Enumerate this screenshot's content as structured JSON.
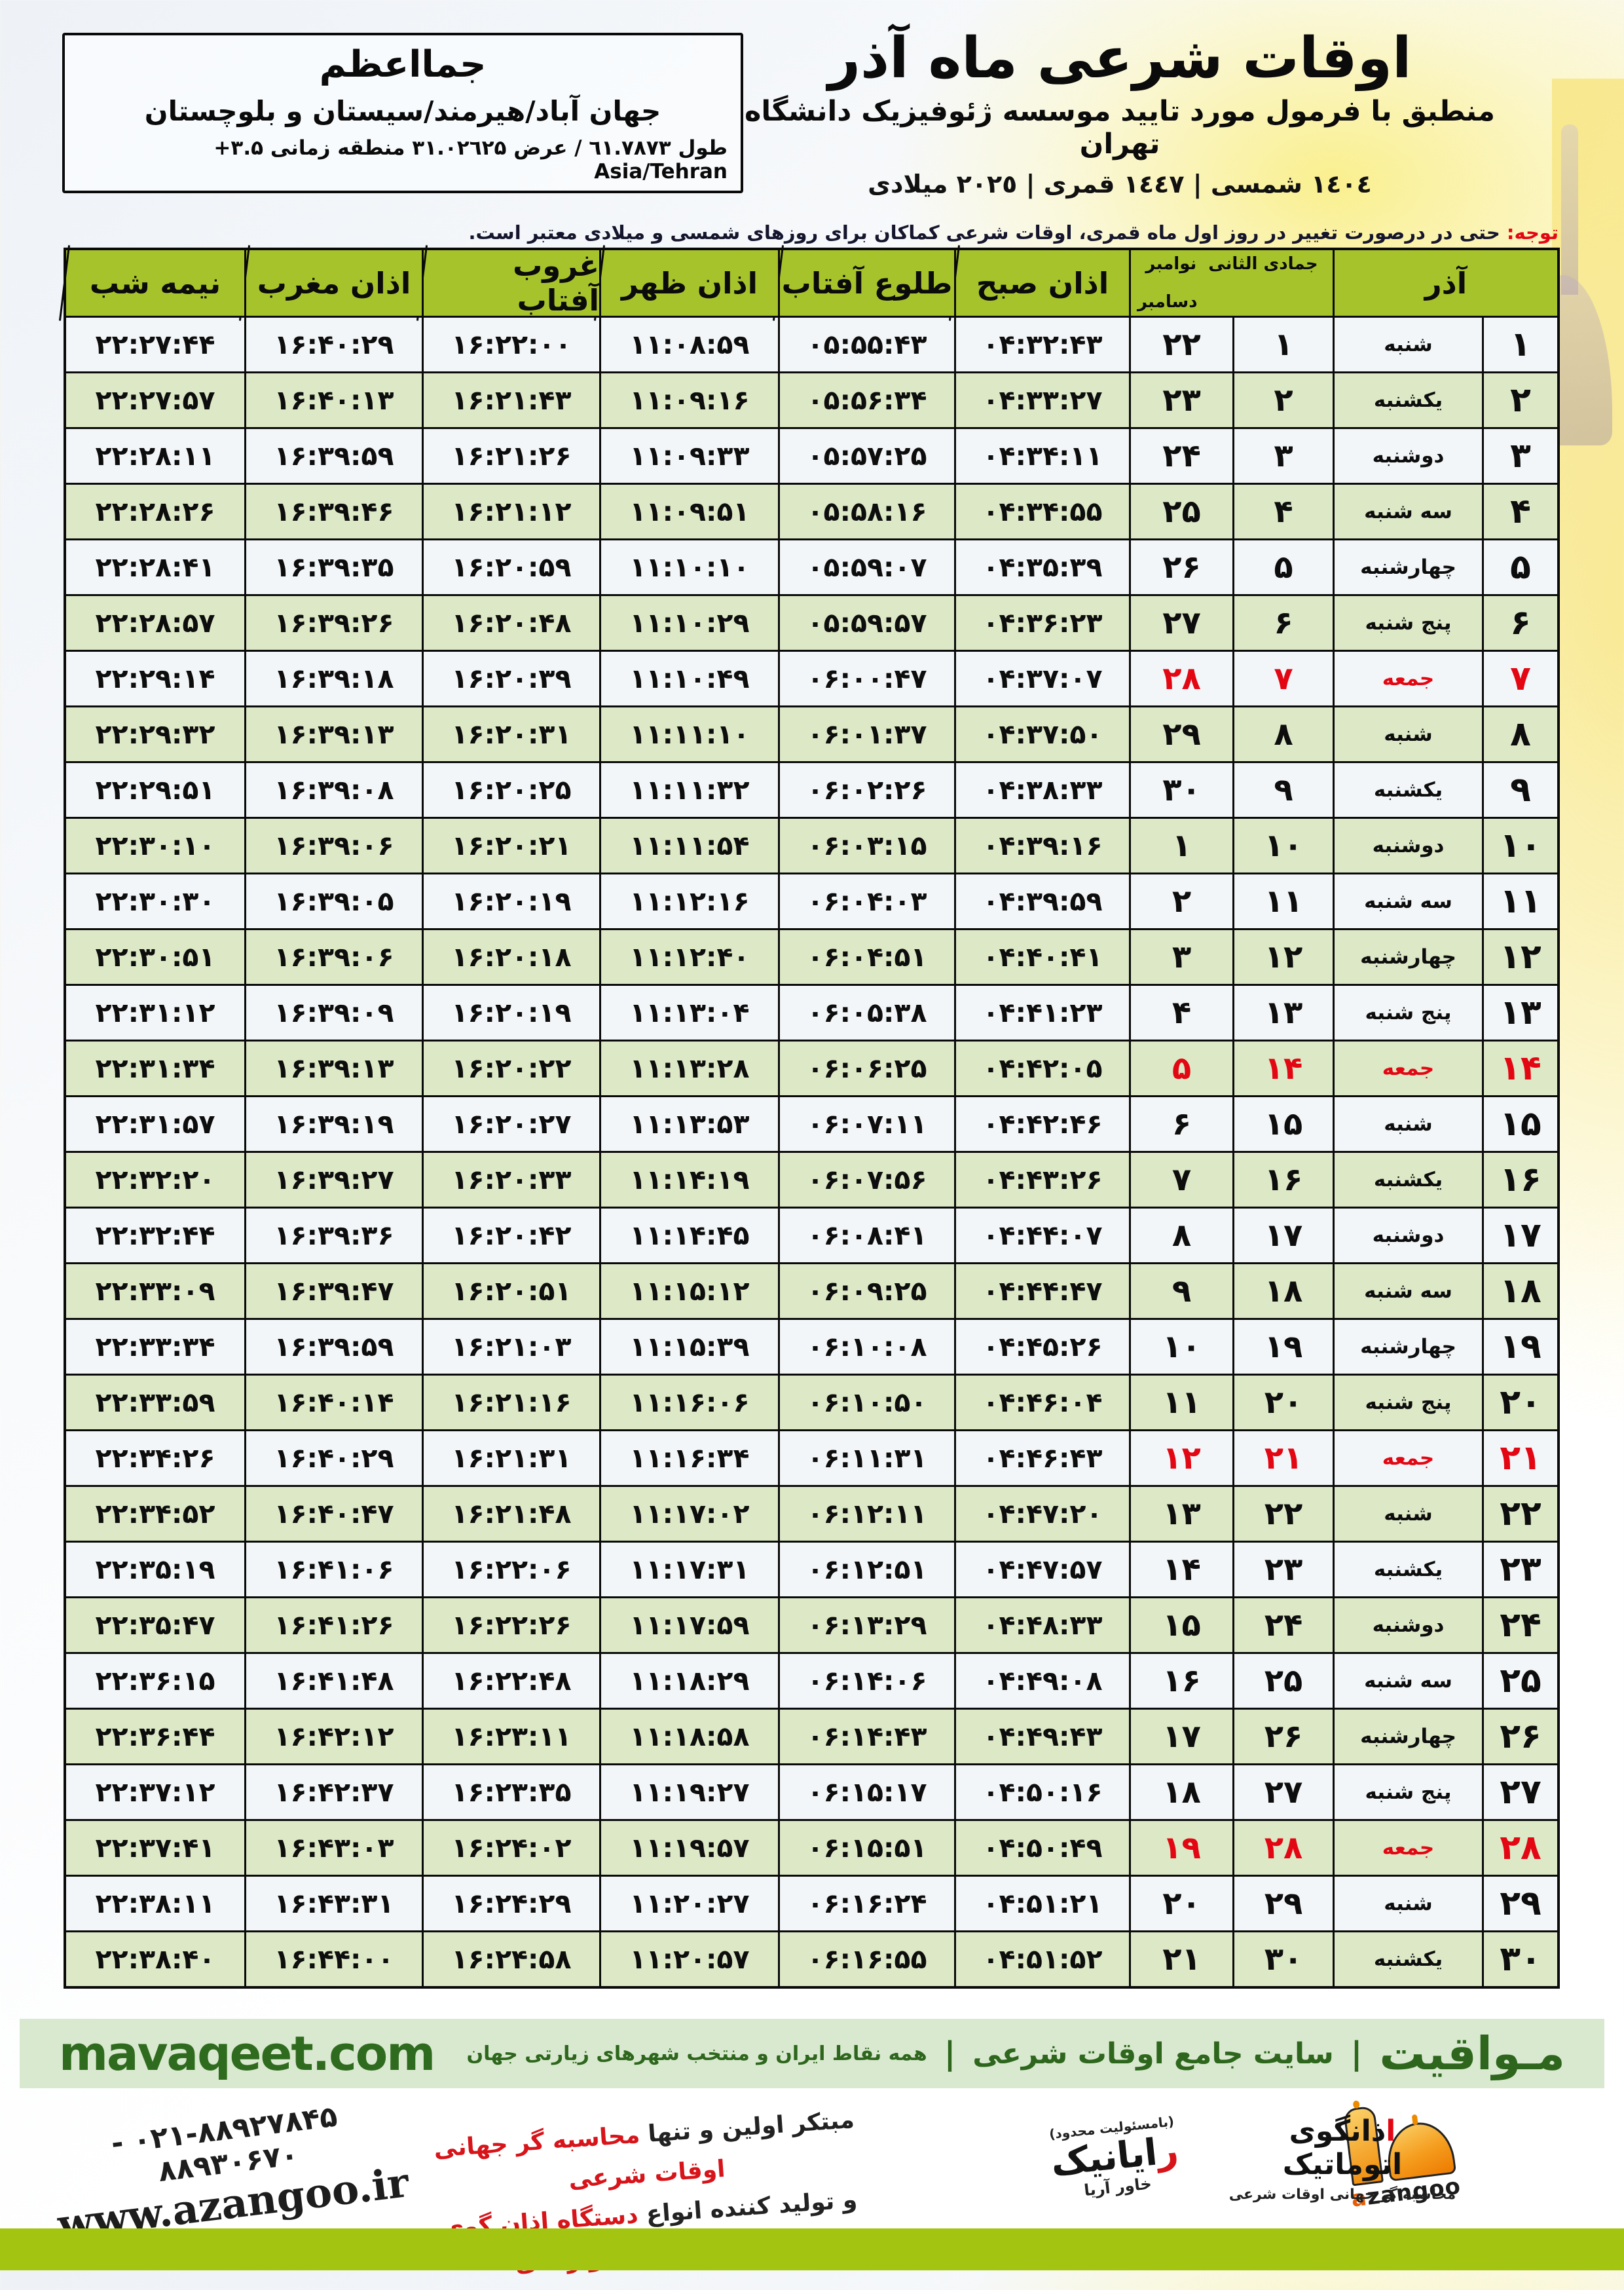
{
  "colors": {
    "header_green": "#a7c32c",
    "row_green": "#dce8c6",
    "row_white": "#f3f6f8",
    "friday_red": "#e30613",
    "banner_bg": "#d9e9cf",
    "banner_text": "#2d661c",
    "bottom_bar": "#a3c511",
    "logo_orange": "#f08a08"
  },
  "location": {
    "title": "جمااعظم",
    "region": "جهان آباد/هیرمند/سیستان و بلوچستان",
    "coords": "طول ٦١.۷۸۷۳ / عرض ۳۱.۰۲٦۲۵ منطقه زمانی ۳.۵+ Asia/Tehran"
  },
  "header": {
    "title": "اوقات شرعی ماه آذر",
    "subtitle": "منطبق با فرمول مورد تایید موسسه ژئوفیزیک دانشگاه تهران",
    "years": "١٤٠٤ شمسی | ١٤٤٧ قمری | ٢٠٢٥ میلادی"
  },
  "notice": {
    "label": "توجه:",
    "text": " حتی در درصورت تغییر در روز اول ماه قمری، اوقات شرعی کماکان برای روزهای شمسی و میلادی معتبر است."
  },
  "table": {
    "columns": {
      "azar": "آذر",
      "hijri_month": "جمادی الثانی",
      "greg_month_top": "نوامبر",
      "greg_month_bottom": "دسامبر",
      "fajr": "اذان صبح",
      "sunrise": "طلوع آفتاب",
      "dhuhr": "اذان ظهر",
      "sunset": "غروب آفتاب",
      "maghrib": "اذان مغرب",
      "midnight": "نیمه شب"
    },
    "rows": [
      {
        "azar": "۱",
        "weekday": "شنبه",
        "jumada": "۱",
        "greg": "۲۲",
        "fajr": "۰۴:۳۲:۴۳",
        "sunrise": "۰۵:۵۵:۴۳",
        "dhuhr": "۱۱:۰۸:۵۹",
        "sunset": "۱۶:۲۲:۰۰",
        "maghrib": "۱۶:۴۰:۲۹",
        "midnight": "۲۲:۲۷:۴۴",
        "friday": false
      },
      {
        "azar": "۲",
        "weekday": "یکشنبه",
        "jumada": "۲",
        "greg": "۲۳",
        "fajr": "۰۴:۳۳:۲۷",
        "sunrise": "۰۵:۵۶:۳۴",
        "dhuhr": "۱۱:۰۹:۱۶",
        "sunset": "۱۶:۲۱:۴۳",
        "maghrib": "۱۶:۴۰:۱۳",
        "midnight": "۲۲:۲۷:۵۷",
        "friday": false
      },
      {
        "azar": "۳",
        "weekday": "دوشنبه",
        "jumada": "۳",
        "greg": "۲۴",
        "fajr": "۰۴:۳۴:۱۱",
        "sunrise": "۰۵:۵۷:۲۵",
        "dhuhr": "۱۱:۰۹:۳۳",
        "sunset": "۱۶:۲۱:۲۶",
        "maghrib": "۱۶:۳۹:۵۹",
        "midnight": "۲۲:۲۸:۱۱",
        "friday": false
      },
      {
        "azar": "۴",
        "weekday": "سه شنبه",
        "jumada": "۴",
        "greg": "۲۵",
        "fajr": "۰۴:۳۴:۵۵",
        "sunrise": "۰۵:۵۸:۱۶",
        "dhuhr": "۱۱:۰۹:۵۱",
        "sunset": "۱۶:۲۱:۱۲",
        "maghrib": "۱۶:۳۹:۴۶",
        "midnight": "۲۲:۲۸:۲۶",
        "friday": false
      },
      {
        "azar": "۵",
        "weekday": "چهارشنبه",
        "jumada": "۵",
        "greg": "۲۶",
        "fajr": "۰۴:۳۵:۳۹",
        "sunrise": "۰۵:۵۹:۰۷",
        "dhuhr": "۱۱:۱۰:۱۰",
        "sunset": "۱۶:۲۰:۵۹",
        "maghrib": "۱۶:۳۹:۳۵",
        "midnight": "۲۲:۲۸:۴۱",
        "friday": false
      },
      {
        "azar": "۶",
        "weekday": "پنج شنبه",
        "jumada": "۶",
        "greg": "۲۷",
        "fajr": "۰۴:۳۶:۲۳",
        "sunrise": "۰۵:۵۹:۵۷",
        "dhuhr": "۱۱:۱۰:۲۹",
        "sunset": "۱۶:۲۰:۴۸",
        "maghrib": "۱۶:۳۹:۲۶",
        "midnight": "۲۲:۲۸:۵۷",
        "friday": false
      },
      {
        "azar": "۷",
        "weekday": "جمعه",
        "jumada": "۷",
        "greg": "۲۸",
        "fajr": "۰۴:۳۷:۰۷",
        "sunrise": "۰۶:۰۰:۴۷",
        "dhuhr": "۱۱:۱۰:۴۹",
        "sunset": "۱۶:۲۰:۳۹",
        "maghrib": "۱۶:۳۹:۱۸",
        "midnight": "۲۲:۲۹:۱۴",
        "friday": true
      },
      {
        "azar": "۸",
        "weekday": "شنبه",
        "jumada": "۸",
        "greg": "۲۹",
        "fajr": "۰۴:۳۷:۵۰",
        "sunrise": "۰۶:۰۱:۳۷",
        "dhuhr": "۱۱:۱۱:۱۰",
        "sunset": "۱۶:۲۰:۳۱",
        "maghrib": "۱۶:۳۹:۱۳",
        "midnight": "۲۲:۲۹:۳۲",
        "friday": false
      },
      {
        "azar": "۹",
        "weekday": "یکشنبه",
        "jumada": "۹",
        "greg": "۳۰",
        "fajr": "۰۴:۳۸:۳۳",
        "sunrise": "۰۶:۰۲:۲۶",
        "dhuhr": "۱۱:۱۱:۳۲",
        "sunset": "۱۶:۲۰:۲۵",
        "maghrib": "۱۶:۳۹:۰۸",
        "midnight": "۲۲:۲۹:۵۱",
        "friday": false
      },
      {
        "azar": "۱۰",
        "weekday": "دوشنبه",
        "jumada": "۱۰",
        "greg": "۱",
        "fajr": "۰۴:۳۹:۱۶",
        "sunrise": "۰۶:۰۳:۱۵",
        "dhuhr": "۱۱:۱۱:۵۴",
        "sunset": "۱۶:۲۰:۲۱",
        "maghrib": "۱۶:۳۹:۰۶",
        "midnight": "۲۲:۳۰:۱۰",
        "friday": false
      },
      {
        "azar": "۱۱",
        "weekday": "سه شنبه",
        "jumada": "۱۱",
        "greg": "۲",
        "fajr": "۰۴:۳۹:۵۹",
        "sunrise": "۰۶:۰۴:۰۳",
        "dhuhr": "۱۱:۱۲:۱۶",
        "sunset": "۱۶:۲۰:۱۹",
        "maghrib": "۱۶:۳۹:۰۵",
        "midnight": "۲۲:۳۰:۳۰",
        "friday": false
      },
      {
        "azar": "۱۲",
        "weekday": "چهارشنبه",
        "jumada": "۱۲",
        "greg": "۳",
        "fajr": "۰۴:۴۰:۴۱",
        "sunrise": "۰۶:۰۴:۵۱",
        "dhuhr": "۱۱:۱۲:۴۰",
        "sunset": "۱۶:۲۰:۱۸",
        "maghrib": "۱۶:۳۹:۰۶",
        "midnight": "۲۲:۳۰:۵۱",
        "friday": false
      },
      {
        "azar": "۱۳",
        "weekday": "پنج شنبه",
        "jumada": "۱۳",
        "greg": "۴",
        "fajr": "۰۴:۴۱:۲۳",
        "sunrise": "۰۶:۰۵:۳۸",
        "dhuhr": "۱۱:۱۳:۰۴",
        "sunset": "۱۶:۲۰:۱۹",
        "maghrib": "۱۶:۳۹:۰۹",
        "midnight": "۲۲:۳۱:۱۲",
        "friday": false
      },
      {
        "azar": "۱۴",
        "weekday": "جمعه",
        "jumada": "۱۴",
        "greg": "۵",
        "fajr": "۰۴:۴۲:۰۵",
        "sunrise": "۰۶:۰۶:۲۵",
        "dhuhr": "۱۱:۱۳:۲۸",
        "sunset": "۱۶:۲۰:۲۲",
        "maghrib": "۱۶:۳۹:۱۳",
        "midnight": "۲۲:۳۱:۳۴",
        "friday": true
      },
      {
        "azar": "۱۵",
        "weekday": "شنبه",
        "jumada": "۱۵",
        "greg": "۶",
        "fajr": "۰۴:۴۲:۴۶",
        "sunrise": "۰۶:۰۷:۱۱",
        "dhuhr": "۱۱:۱۳:۵۳",
        "sunset": "۱۶:۲۰:۲۷",
        "maghrib": "۱۶:۳۹:۱۹",
        "midnight": "۲۲:۳۱:۵۷",
        "friday": false
      },
      {
        "azar": "۱۶",
        "weekday": "یکشنبه",
        "jumada": "۱۶",
        "greg": "۷",
        "fajr": "۰۴:۴۳:۲۶",
        "sunrise": "۰۶:۰۷:۵۶",
        "dhuhr": "۱۱:۱۴:۱۹",
        "sunset": "۱۶:۲۰:۳۳",
        "maghrib": "۱۶:۳۹:۲۷",
        "midnight": "۲۲:۳۲:۲۰",
        "friday": false
      },
      {
        "azar": "۱۷",
        "weekday": "دوشنبه",
        "jumada": "۱۷",
        "greg": "۸",
        "fajr": "۰۴:۴۴:۰۷",
        "sunrise": "۰۶:۰۸:۴۱",
        "dhuhr": "۱۱:۱۴:۴۵",
        "sunset": "۱۶:۲۰:۴۲",
        "maghrib": "۱۶:۳۹:۳۶",
        "midnight": "۲۲:۳۲:۴۴",
        "friday": false
      },
      {
        "azar": "۱۸",
        "weekday": "سه شنبه",
        "jumada": "۱۸",
        "greg": "۹",
        "fajr": "۰۴:۴۴:۴۷",
        "sunrise": "۰۶:۰۹:۲۵",
        "dhuhr": "۱۱:۱۵:۱۲",
        "sunset": "۱۶:۲۰:۵۱",
        "maghrib": "۱۶:۳۹:۴۷",
        "midnight": "۲۲:۳۳:۰۹",
        "friday": false
      },
      {
        "azar": "۱۹",
        "weekday": "چهارشنبه",
        "jumada": "۱۹",
        "greg": "۱۰",
        "fajr": "۰۴:۴۵:۲۶",
        "sunrise": "۰۶:۱۰:۰۸",
        "dhuhr": "۱۱:۱۵:۳۹",
        "sunset": "۱۶:۲۱:۰۳",
        "maghrib": "۱۶:۳۹:۵۹",
        "midnight": "۲۲:۳۳:۳۴",
        "friday": false
      },
      {
        "azar": "۲۰",
        "weekday": "پنج شنبه",
        "jumada": "۲۰",
        "greg": "۱۱",
        "fajr": "۰۴:۴۶:۰۴",
        "sunrise": "۰۶:۱۰:۵۰",
        "dhuhr": "۱۱:۱۶:۰۶",
        "sunset": "۱۶:۲۱:۱۶",
        "maghrib": "۱۶:۴۰:۱۴",
        "midnight": "۲۲:۳۳:۵۹",
        "friday": false
      },
      {
        "azar": "۲۱",
        "weekday": "جمعه",
        "jumada": "۲۱",
        "greg": "۱۲",
        "fajr": "۰۴:۴۶:۴۳",
        "sunrise": "۰۶:۱۱:۳۱",
        "dhuhr": "۱۱:۱۶:۳۴",
        "sunset": "۱۶:۲۱:۳۱",
        "maghrib": "۱۶:۴۰:۲۹",
        "midnight": "۲۲:۳۴:۲۶",
        "friday": true
      },
      {
        "azar": "۲۲",
        "weekday": "شنبه",
        "jumada": "۲۲",
        "greg": "۱۳",
        "fajr": "۰۴:۴۷:۲۰",
        "sunrise": "۰۶:۱۲:۱۱",
        "dhuhr": "۱۱:۱۷:۰۲",
        "sunset": "۱۶:۲۱:۴۸",
        "maghrib": "۱۶:۴۰:۴۷",
        "midnight": "۲۲:۳۴:۵۲",
        "friday": false
      },
      {
        "azar": "۲۳",
        "weekday": "یکشنبه",
        "jumada": "۲۳",
        "greg": "۱۴",
        "fajr": "۰۴:۴۷:۵۷",
        "sunrise": "۰۶:۱۲:۵۱",
        "dhuhr": "۱۱:۱۷:۳۱",
        "sunset": "۱۶:۲۲:۰۶",
        "maghrib": "۱۶:۴۱:۰۶",
        "midnight": "۲۲:۳۵:۱۹",
        "friday": false
      },
      {
        "azar": "۲۴",
        "weekday": "دوشنبه",
        "jumada": "۲۴",
        "greg": "۱۵",
        "fajr": "۰۴:۴۸:۳۳",
        "sunrise": "۰۶:۱۳:۲۹",
        "dhuhr": "۱۱:۱۷:۵۹",
        "sunset": "۱۶:۲۲:۲۶",
        "maghrib": "۱۶:۴۱:۲۶",
        "midnight": "۲۲:۳۵:۴۷",
        "friday": false
      },
      {
        "azar": "۲۵",
        "weekday": "سه شنبه",
        "jumada": "۲۵",
        "greg": "۱۶",
        "fajr": "۰۴:۴۹:۰۸",
        "sunrise": "۰۶:۱۴:۰۶",
        "dhuhr": "۱۱:۱۸:۲۹",
        "sunset": "۱۶:۲۲:۴۸",
        "maghrib": "۱۶:۴۱:۴۸",
        "midnight": "۲۲:۳۶:۱۵",
        "friday": false
      },
      {
        "azar": "۲۶",
        "weekday": "چهارشنبه",
        "jumada": "۲۶",
        "greg": "۱۷",
        "fajr": "۰۴:۴۹:۴۳",
        "sunrise": "۰۶:۱۴:۴۳",
        "dhuhr": "۱۱:۱۸:۵۸",
        "sunset": "۱۶:۲۳:۱۱",
        "maghrib": "۱۶:۴۲:۱۲",
        "midnight": "۲۲:۳۶:۴۴",
        "friday": false
      },
      {
        "azar": "۲۷",
        "weekday": "پنج شنبه",
        "jumada": "۲۷",
        "greg": "۱۸",
        "fajr": "۰۴:۵۰:۱۶",
        "sunrise": "۰۶:۱۵:۱۷",
        "dhuhr": "۱۱:۱۹:۲۷",
        "sunset": "۱۶:۲۳:۳۵",
        "maghrib": "۱۶:۴۲:۳۷",
        "midnight": "۲۲:۳۷:۱۲",
        "friday": false
      },
      {
        "azar": "۲۸",
        "weekday": "جمعه",
        "jumada": "۲۸",
        "greg": "۱۹",
        "fajr": "۰۴:۵۰:۴۹",
        "sunrise": "۰۶:۱۵:۵۱",
        "dhuhr": "۱۱:۱۹:۵۷",
        "sunset": "۱۶:۲۴:۰۲",
        "maghrib": "۱۶:۴۳:۰۳",
        "midnight": "۲۲:۳۷:۴۱",
        "friday": true
      },
      {
        "azar": "۲۹",
        "weekday": "شنبه",
        "jumada": "۲۹",
        "greg": "۲۰",
        "fajr": "۰۴:۵۱:۲۱",
        "sunrise": "۰۶:۱۶:۲۴",
        "dhuhr": "۱۱:۲۰:۲۷",
        "sunset": "۱۶:۲۴:۲۹",
        "maghrib": "۱۶:۴۳:۳۱",
        "midnight": "۲۲:۳۸:۱۱",
        "friday": false
      },
      {
        "azar": "۳۰",
        "weekday": "یکشنبه",
        "jumada": "۳۰",
        "greg": "۲۱",
        "fajr": "۰۴:۵۱:۵۲",
        "sunrise": "۰۶:۱۶:۵۵",
        "dhuhr": "۱۱:۲۰:۵۷",
        "sunset": "۱۶:۲۴:۵۸",
        "maghrib": "۱۶:۴۴:۰۰",
        "midnight": "۲۲:۳۸:۴۰",
        "friday": false
      }
    ]
  },
  "banner": {
    "brand": "مـواقیت",
    "sep": "|",
    "site_label": "سایت جامع اوقات شرعی",
    "tagline": "همه نقاط ایران و منتخب شهرهای زیارتی جهان",
    "url": "mavaqeet.com"
  },
  "footer": {
    "azangoo": {
      "fa_pre": "ا",
      "fa_rest": "ذانگوی اتوماتیک",
      "fa_sub": "محاسبه گر جهانی اوقات شرعی",
      "en_a": "a",
      "en_rest": "zangoo"
    },
    "rayanik": {
      "top": "(بامسئولیت محدود)",
      "main_first": "ر",
      "main_rest": "ایانیک",
      "khavar": "خاور آریا"
    },
    "slogan": {
      "l1_black": "مبتکر اولین و تنها ",
      "l1_red": "محاسبه گر جهانی اوقات شرعی",
      "l2_black": "و تولید کننده انواع ",
      "l2_red": "دستگاه اذان گوی تمام خودکار ماهواره ای"
    },
    "contact": {
      "phone": "۰۲۱-۸۸۹۲۷۸۴۵ - ۸۸۹۳۰۶۷۰",
      "site": "www.azangoo.ir"
    }
  }
}
